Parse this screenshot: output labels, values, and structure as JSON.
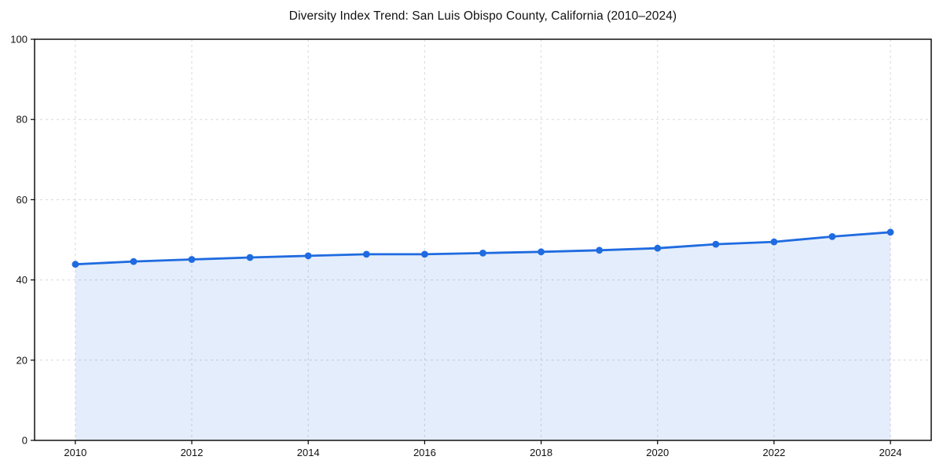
{
  "page": {
    "background_color": "#ffffff"
  },
  "chart_data": {
    "type": "area",
    "title": "Diversity Index Trend: San Luis Obispo County, California (2010–2024)",
    "x": [
      2010,
      2011,
      2012,
      2013,
      2014,
      2015,
      2016,
      2017,
      2018,
      2019,
      2020,
      2021,
      2022,
      2023,
      2024
    ],
    "series": [
      {
        "name": "Diversity Index",
        "values": [
          43.9,
          44.6,
          45.1,
          45.6,
          46.0,
          46.4,
          46.4,
          46.7,
          47.0,
          47.4,
          47.9,
          48.9,
          49.5,
          50.8,
          51.9
        ]
      }
    ],
    "xlabel": "",
    "ylabel": "",
    "xlim": [
      2009.3,
      2024.7
    ],
    "ylim": [
      0,
      100
    ],
    "xticks": [
      2010,
      2012,
      2014,
      2016,
      2018,
      2020,
      2022,
      2024
    ],
    "yticks": [
      0,
      20,
      40,
      60,
      80,
      100
    ],
    "grid": true,
    "grid_line_style": "dashed",
    "legend_position": "none",
    "line_color": "#1f6be0",
    "marker": "circle",
    "marker_color": "#1f6be0",
    "fill_color": "#1f6be0",
    "fill_opacity": 0.12,
    "axis_frame_color": "#000000",
    "grid_color": "#d8d8d8",
    "tick_label_color": "#111111"
  }
}
